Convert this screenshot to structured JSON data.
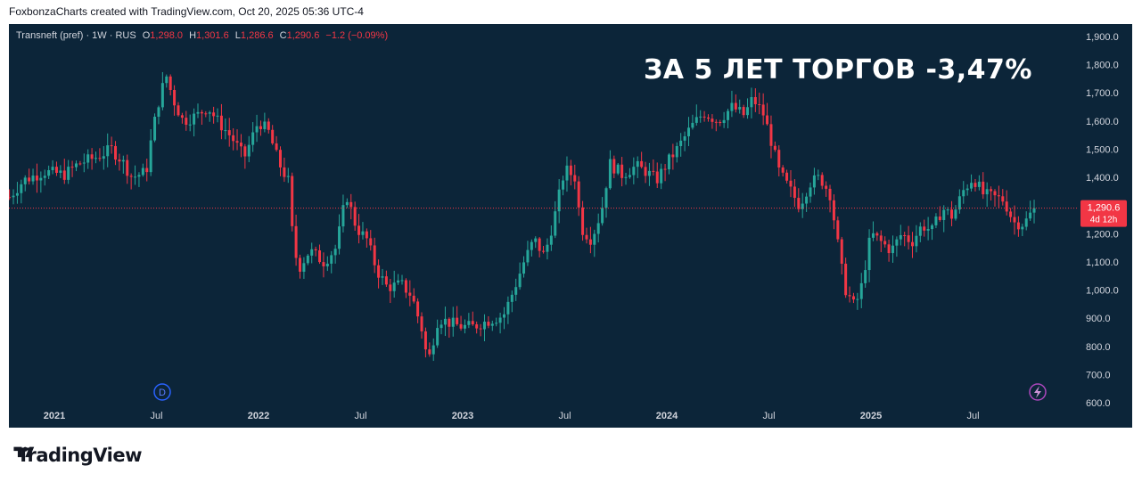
{
  "attribution": "FoxbonzaCharts created with TradingView.com, Oct 20, 2025 05:36 UTC-4",
  "legend": {
    "symbol": "Transneft (pref) · 1W · RUS",
    "o_label": "O",
    "o_value": "1,298.0",
    "h_label": "H",
    "h_value": "1,301.6",
    "l_label": "L",
    "l_value": "1,286.6",
    "c_label": "C",
    "c_value": "1,290.6",
    "change": "−1.2 (−0.09%)"
  },
  "headline": "ЗА 5 ЛЕТ ТОРГОВ -3,47%",
  "price_badge": {
    "price": "1,290.6",
    "countdown": "4d 12h"
  },
  "event_markers": {
    "dividend": "D",
    "earnings_icon": "lightning-icon"
  },
  "brand": "TradingView",
  "colors": {
    "background": "#0c2539",
    "up": "#26a69a",
    "down": "#f23645",
    "text": "#d1d4dc"
  },
  "chart_data": {
    "type": "candlestick",
    "title": "Transneft (pref)",
    "timeframe": "1W",
    "ylim": [
      600,
      1900
    ],
    "y_ticks": [
      "1,900.0",
      "1,800.0",
      "1,700.0",
      "1,600.0",
      "1,500.0",
      "1,400.0",
      "1,300.0",
      "1,200.0",
      "1,100.0",
      "1,000.0",
      "900.0",
      "800.0",
      "700.0",
      "600.0"
    ],
    "x_ticks": [
      {
        "label": "2021",
        "t": 2021.0
      },
      {
        "label": "Jul",
        "t": 2021.5
      },
      {
        "label": "2022",
        "t": 2022.0
      },
      {
        "label": "Jul",
        "t": 2022.5
      },
      {
        "label": "2023",
        "t": 2023.0
      },
      {
        "label": "Jul",
        "t": 2023.5
      },
      {
        "label": "2024",
        "t": 2024.0
      },
      {
        "label": "Jul",
        "t": 2024.5
      },
      {
        "label": "2025",
        "t": 2025.0
      },
      {
        "label": "Jul",
        "t": 2025.5
      }
    ],
    "last_close": 1290.6,
    "close_path": [
      {
        "t": 2020.78,
        "v": 1330
      },
      {
        "t": 2020.85,
        "v": 1390
      },
      {
        "t": 2020.95,
        "v": 1420
      },
      {
        "t": 2021.05,
        "v": 1410
      },
      {
        "t": 2021.12,
        "v": 1450
      },
      {
        "t": 2021.2,
        "v": 1470
      },
      {
        "t": 2021.28,
        "v": 1500
      },
      {
        "t": 2021.33,
        "v": 1460
      },
      {
        "t": 2021.38,
        "v": 1400
      },
      {
        "t": 2021.45,
        "v": 1420
      },
      {
        "t": 2021.48,
        "v": 1560
      },
      {
        "t": 2021.52,
        "v": 1700
      },
      {
        "t": 2021.55,
        "v": 1760
      },
      {
        "t": 2021.58,
        "v": 1680
      },
      {
        "t": 2021.63,
        "v": 1600
      },
      {
        "t": 2021.7,
        "v": 1620
      },
      {
        "t": 2021.75,
        "v": 1650
      },
      {
        "t": 2021.8,
        "v": 1600
      },
      {
        "t": 2021.87,
        "v": 1540
      },
      {
        "t": 2021.93,
        "v": 1470
      },
      {
        "t": 2022.0,
        "v": 1600
      },
      {
        "t": 2022.05,
        "v": 1560
      },
      {
        "t": 2022.1,
        "v": 1450
      },
      {
        "t": 2022.15,
        "v": 1380
      },
      {
        "t": 2022.17,
        "v": 1150
      },
      {
        "t": 2022.2,
        "v": 1080
      },
      {
        "t": 2022.25,
        "v": 1140
      },
      {
        "t": 2022.32,
        "v": 1100
      },
      {
        "t": 2022.38,
        "v": 1150
      },
      {
        "t": 2022.43,
        "v": 1340
      },
      {
        "t": 2022.48,
        "v": 1220
      },
      {
        "t": 2022.53,
        "v": 1180
      },
      {
        "t": 2022.58,
        "v": 1070
      },
      {
        "t": 2022.63,
        "v": 1010
      },
      {
        "t": 2022.7,
        "v": 1020
      },
      {
        "t": 2022.75,
        "v": 980
      },
      {
        "t": 2022.8,
        "v": 860
      },
      {
        "t": 2022.83,
        "v": 740
      },
      {
        "t": 2022.88,
        "v": 900
      },
      {
        "t": 2022.95,
        "v": 880
      },
      {
        "t": 2023.0,
        "v": 870
      },
      {
        "t": 2023.05,
        "v": 870
      },
      {
        "t": 2023.12,
        "v": 890
      },
      {
        "t": 2023.2,
        "v": 910
      },
      {
        "t": 2023.25,
        "v": 1000
      },
      {
        "t": 2023.3,
        "v": 1100
      },
      {
        "t": 2023.35,
        "v": 1180
      },
      {
        "t": 2023.4,
        "v": 1120
      },
      {
        "t": 2023.45,
        "v": 1260
      },
      {
        "t": 2023.5,
        "v": 1430
      },
      {
        "t": 2023.55,
        "v": 1400
      },
      {
        "t": 2023.58,
        "v": 1220
      },
      {
        "t": 2023.63,
        "v": 1180
      },
      {
        "t": 2023.68,
        "v": 1280
      },
      {
        "t": 2023.72,
        "v": 1450
      },
      {
        "t": 2023.78,
        "v": 1410
      },
      {
        "t": 2023.85,
        "v": 1440
      },
      {
        "t": 2023.9,
        "v": 1420
      },
      {
        "t": 2023.95,
        "v": 1390
      },
      {
        "t": 2024.0,
        "v": 1450
      },
      {
        "t": 2024.05,
        "v": 1500
      },
      {
        "t": 2024.12,
        "v": 1580
      },
      {
        "t": 2024.18,
        "v": 1630
      },
      {
        "t": 2024.25,
        "v": 1600
      },
      {
        "t": 2024.32,
        "v": 1650
      },
      {
        "t": 2024.38,
        "v": 1620
      },
      {
        "t": 2024.42,
        "v": 1680
      },
      {
        "t": 2024.47,
        "v": 1630
      },
      {
        "t": 2024.5,
        "v": 1560
      },
      {
        "t": 2024.55,
        "v": 1420
      },
      {
        "t": 2024.6,
        "v": 1360
      },
      {
        "t": 2024.65,
        "v": 1300
      },
      {
        "t": 2024.7,
        "v": 1380
      },
      {
        "t": 2024.75,
        "v": 1400
      },
      {
        "t": 2024.8,
        "v": 1340
      },
      {
        "t": 2024.83,
        "v": 1200
      },
      {
        "t": 2024.87,
        "v": 1010
      },
      {
        "t": 2024.92,
        "v": 940
      },
      {
        "t": 2024.95,
        "v": 1000
      },
      {
        "t": 2025.0,
        "v": 1200
      },
      {
        "t": 2025.05,
        "v": 1170
      },
      {
        "t": 2025.1,
        "v": 1140
      },
      {
        "t": 2025.15,
        "v": 1200
      },
      {
        "t": 2025.2,
        "v": 1170
      },
      {
        "t": 2025.25,
        "v": 1230
      },
      {
        "t": 2025.3,
        "v": 1210
      },
      {
        "t": 2025.35,
        "v": 1290
      },
      {
        "t": 2025.4,
        "v": 1260
      },
      {
        "t": 2025.45,
        "v": 1350
      },
      {
        "t": 2025.5,
        "v": 1400
      },
      {
        "t": 2025.55,
        "v": 1340
      },
      {
        "t": 2025.6,
        "v": 1330
      },
      {
        "t": 2025.65,
        "v": 1320
      },
      {
        "t": 2025.7,
        "v": 1240
      },
      {
        "t": 2025.75,
        "v": 1235
      },
      {
        "t": 2025.8,
        "v": 1290.6
      }
    ]
  }
}
